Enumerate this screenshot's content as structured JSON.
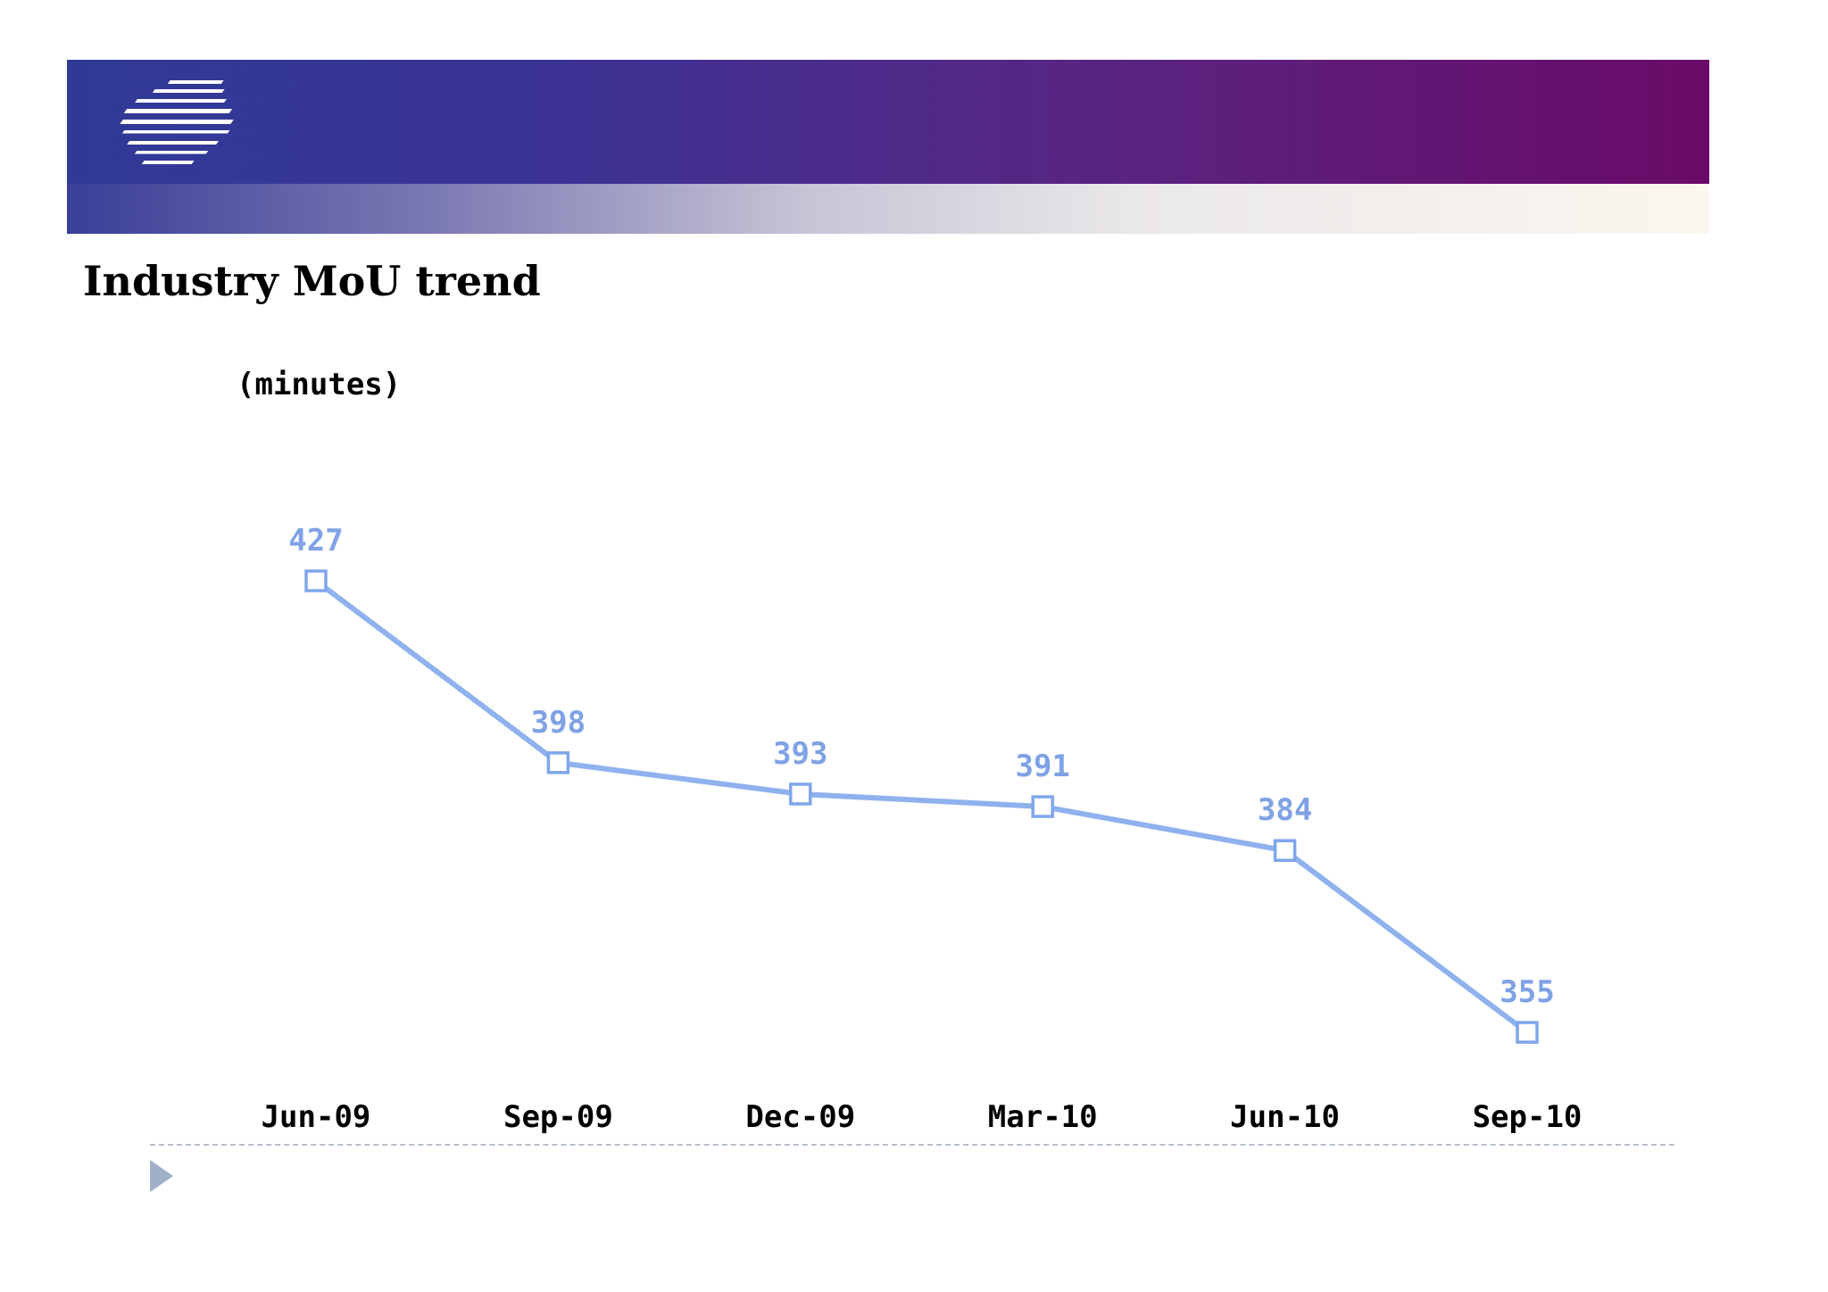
{
  "slide": {
    "title": "Industry MoU trend",
    "logo_icon": "striped-globe-logo-icon"
  },
  "colors": {
    "header_start": "#303a96",
    "header_end": "#6a0a68",
    "series": "#8fb1ee",
    "marker": "#7fa6ea",
    "label": "#7fa2e6"
  },
  "chart_data": {
    "type": "line",
    "unit_label": "(minutes)",
    "categories": [
      "Jun-09",
      "Sep-09",
      "Dec-09",
      "Mar-10",
      "Jun-10",
      "Sep-10"
    ],
    "series": [
      {
        "values": [
          427,
          398,
          393,
          391,
          384,
          355
        ],
        "labels": [
          "427",
          "398",
          "393",
          "391",
          "384",
          "355"
        ],
        "marker": "hollow-square"
      }
    ],
    "xlabel": "",
    "ylabel": "",
    "ylim": [
      340,
      440
    ],
    "grid": false,
    "legend": "none",
    "data_labels": true
  },
  "footer": {
    "bullet_icon": "triangle-bullet-icon"
  }
}
